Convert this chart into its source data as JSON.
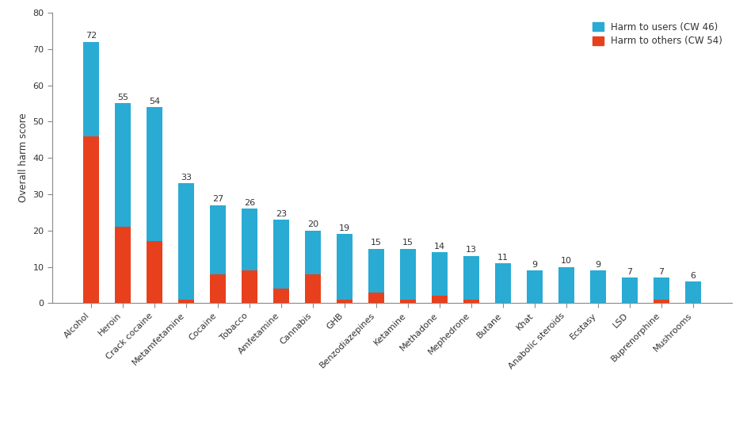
{
  "categories": [
    "Alcohol",
    "Heroin",
    "Crack cocaine",
    "Metamfetamine",
    "Cocaine",
    "Tobacco",
    "Amfetamine",
    "Cannabis",
    "GHB",
    "Benzodiazepines",
    "Ketamine",
    "Methadone",
    "Mephedrone",
    "Butane",
    "Khat",
    "Anabolic steroids",
    "Ecstasy",
    "LSD",
    "Buprenorphine",
    "Mushrooms"
  ],
  "harm_to_others": [
    46,
    21,
    17,
    1,
    8,
    9,
    4,
    8,
    1,
    3,
    1,
    2,
    1,
    0,
    0,
    0,
    0,
    0,
    1,
    0
  ],
  "harm_to_users": [
    26,
    34,
    37,
    32,
    19,
    17,
    19,
    12,
    18,
    12,
    14,
    12,
    12,
    11,
    9,
    10,
    9,
    7,
    6,
    6
  ],
  "totals": [
    72,
    55,
    54,
    33,
    27,
    26,
    23,
    20,
    19,
    15,
    15,
    14,
    13,
    11,
    9,
    10,
    9,
    7,
    7,
    6
  ],
  "color_users": "#29ABD4",
  "color_others": "#E8401C",
  "ylabel": "Overall harm score",
  "ylim": [
    0,
    80
  ],
  "yticks": [
    0,
    10,
    20,
    30,
    40,
    50,
    60,
    70,
    80
  ],
  "legend_users": "Harm to users (CW 46)",
  "legend_others": "Harm to others (CW 54)",
  "label_fontsize": 8.5,
  "tick_fontsize": 8.0,
  "annotation_fontsize": 8.0,
  "bar_width": 0.5
}
